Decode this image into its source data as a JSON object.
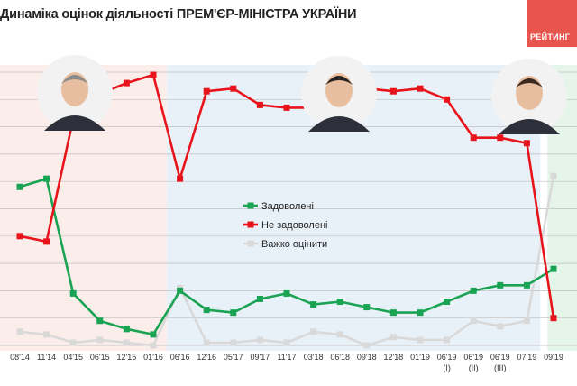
{
  "title": "Динаміка оцінок діяльності ПРЕМ'ЄР-МІНІСТРА УКРАЇНИ",
  "logo": {
    "text": "РЕЙТИНГ",
    "color": "#e8554e"
  },
  "colors": {
    "satisfied": "#1aa352",
    "dissatisfied": "#e8141c",
    "hard": "#d9d9d9",
    "band1": "#fbeeea",
    "band2": "#e9f1f8",
    "band3": "#e6f5e9"
  },
  "portraits": [
    "portrait-1",
    "portrait-2",
    "portrait-3"
  ],
  "chart_data": {
    "type": "line",
    "x": [
      "08'14",
      "11'14",
      "04'15",
      "06'15",
      "12'15",
      "01'16",
      "06'16",
      "12'16",
      "05'17",
      "09'17",
      "11'17",
      "03'18",
      "06'18",
      "09'18",
      "12'18",
      "01'19",
      "06'19 (I)",
      "06'19 (II)",
      "06'19 (III)",
      "07'19",
      "09'19"
    ],
    "x_ticks": [
      {
        "line1": "08'14",
        "line2": ""
      },
      {
        "line1": "11'14",
        "line2": ""
      },
      {
        "line1": "04'15",
        "line2": ""
      },
      {
        "line1": "06'15",
        "line2": ""
      },
      {
        "line1": "12'15",
        "line2": ""
      },
      {
        "line1": "01'16",
        "line2": ""
      },
      {
        "line1": "06'16",
        "line2": ""
      },
      {
        "line1": "12'16",
        "line2": ""
      },
      {
        "line1": "05'17",
        "line2": ""
      },
      {
        "line1": "09'17",
        "line2": ""
      },
      {
        "line1": "11'17",
        "line2": ""
      },
      {
        "line1": "03'18",
        "line2": ""
      },
      {
        "line1": "06'18",
        "line2": ""
      },
      {
        "line1": "09'18",
        "line2": ""
      },
      {
        "line1": "12'18",
        "line2": ""
      },
      {
        "line1": "01'19",
        "line2": ""
      },
      {
        "line1": "06'19",
        "line2": "(I)"
      },
      {
        "line1": "06'19",
        "line2": "(II)"
      },
      {
        "line1": "06'19",
        "line2": "(III)"
      },
      {
        "line1": "07'19",
        "line2": ""
      },
      {
        "line1": "09'19",
        "line2": ""
      }
    ],
    "series": [
      {
        "name": "Задоволені",
        "key": "satisfied",
        "values": [
          58,
          61,
          19,
          9,
          6,
          4,
          20,
          13,
          12,
          17,
          19,
          15,
          16,
          14,
          12,
          12,
          16,
          20,
          22,
          22,
          28
        ]
      },
      {
        "name": "Не задоволені",
        "key": "dissatisfied",
        "values": [
          40,
          38,
          83,
          92,
          96,
          99,
          61,
          93,
          94,
          88,
          87,
          87,
          88,
          94,
          93,
          94,
          90,
          76,
          76,
          74,
          10
        ]
      },
      {
        "name": "Важко оцінити",
        "key": "hard",
        "values": [
          5,
          4,
          1,
          2,
          1,
          0,
          21,
          1,
          1,
          2,
          1,
          5,
          4,
          0,
          3,
          2,
          2,
          9,
          7,
          9,
          62
        ]
      }
    ],
    "ylim": [
      0,
      100
    ],
    "grid": true,
    "legend": "center"
  }
}
